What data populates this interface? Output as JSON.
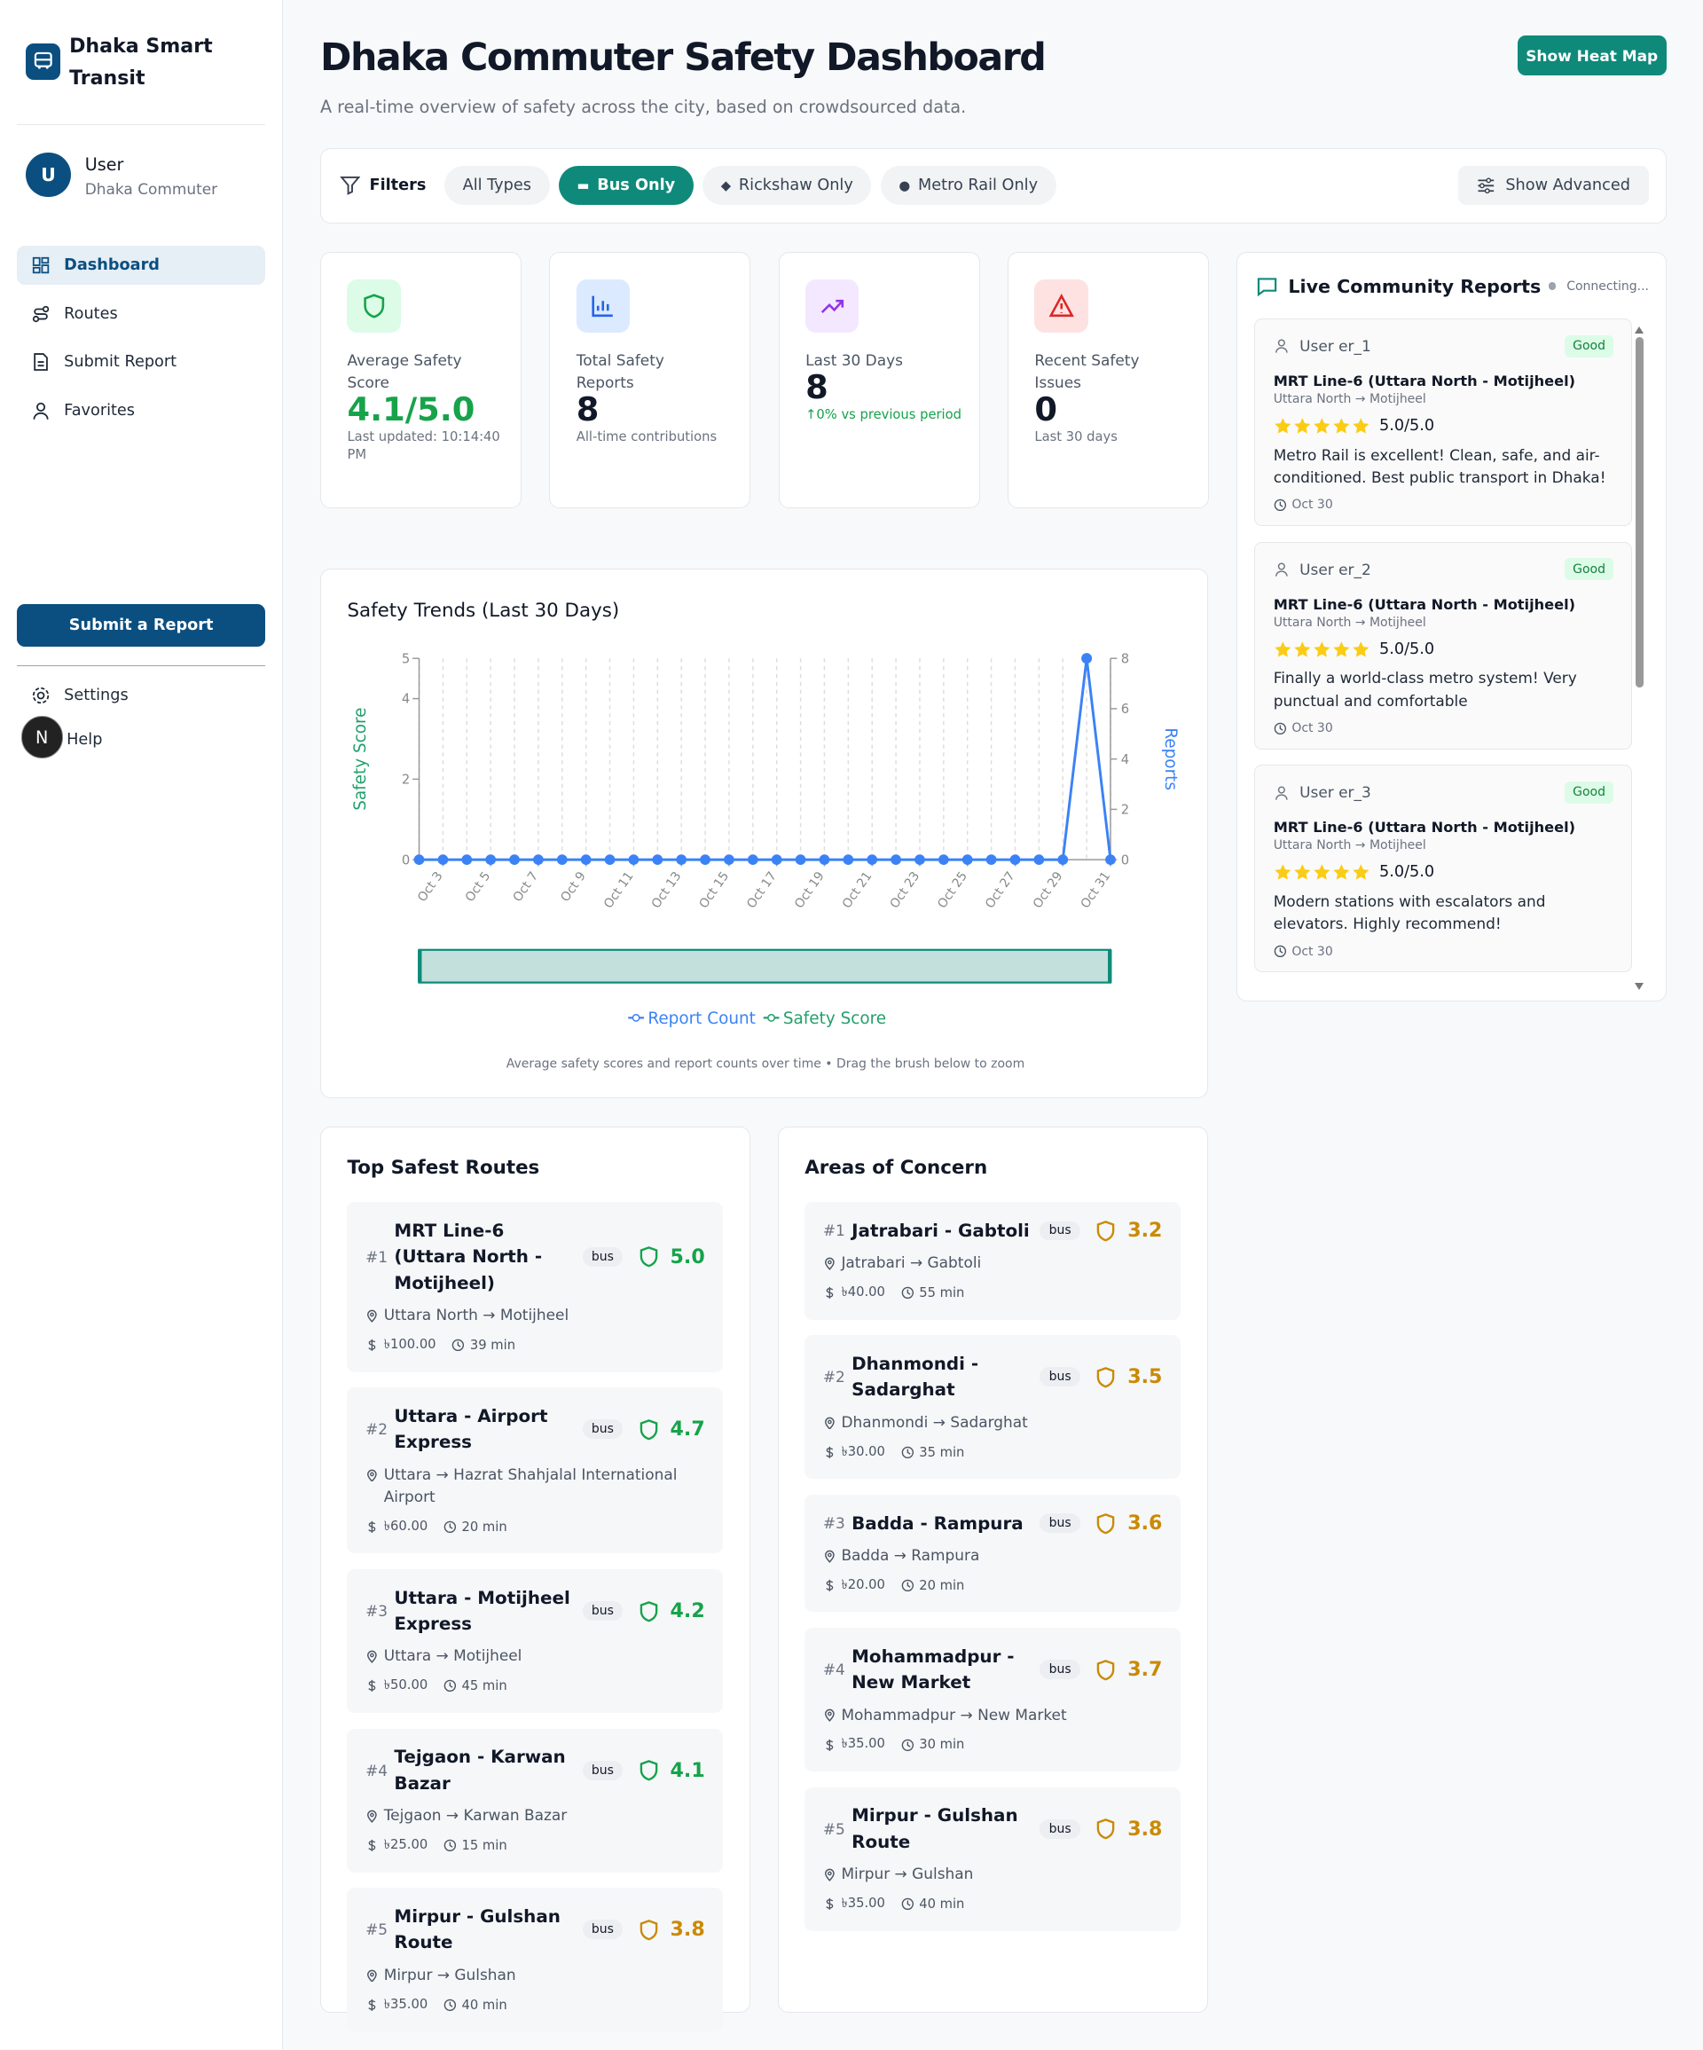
{
  "sidebar": {
    "brand": "Dhaka Smart Transit",
    "avatar": "U",
    "user_name": "User",
    "user_role": "Dhaka Commuter",
    "nav": [
      "Dashboard",
      "Routes",
      "Submit Report",
      "Favorites"
    ],
    "active_nav": 0,
    "submit_button": "Submit a Report",
    "footer_nav": [
      "Settings",
      "Help"
    ],
    "badge": "N"
  },
  "header": {
    "title": "Dhaka Commuter Safety Dashboard",
    "subtitle": "A real-time overview of safety across the city, based on crowdsourced data.",
    "heat_map_button": "Show Heat Map"
  },
  "filters": {
    "label": "Filters",
    "chips": [
      "All Types",
      "Bus Only",
      "Rickshaw Only",
      "Metro Rail Only"
    ],
    "active_chip": 1,
    "advanced": "Show Advanced"
  },
  "stats": [
    {
      "label": "Average Safety Score",
      "value": "4.1/5.0",
      "note": "Last updated: 10:14:40 PM"
    },
    {
      "label": "Total Safety Reports",
      "value": "8",
      "note": "All-time contributions"
    },
    {
      "label": "Last 30 Days",
      "value": "8",
      "note": "↑0% vs previous period"
    },
    {
      "label": "Recent Safety Issues",
      "value": "0",
      "note": "Last 30 days"
    }
  ],
  "chart_data": {
    "type": "line",
    "title": "Safety Trends (Last 30 Days)",
    "categories": [
      null,
      "Oct 3",
      null,
      "Oct 5",
      null,
      "Oct 7",
      null,
      "Oct 9",
      null,
      "Oct 11",
      null,
      "Oct 13",
      null,
      "Oct 15",
      null,
      "Oct 17",
      null,
      "Oct 19",
      null,
      "Oct 21",
      null,
      "Oct 23",
      null,
      "Oct 25",
      null,
      "Oct 27",
      null,
      "Oct 29",
      null,
      "Oct 31"
    ],
    "series": [
      {
        "name": "Report Count",
        "color": "#3b82f6",
        "axis": "y2",
        "values": [
          0,
          0,
          0,
          0,
          0,
          0,
          0,
          0,
          0,
          0,
          0,
          0,
          0,
          0,
          0,
          0,
          0,
          0,
          0,
          0,
          0,
          0,
          0,
          0,
          0,
          0,
          0,
          0,
          8,
          0
        ]
      },
      {
        "name": "Safety Score",
        "color": "#22a06b",
        "values": [
          null,
          null,
          null,
          null,
          null,
          null,
          null,
          null,
          null,
          null,
          null,
          null,
          null,
          null,
          null,
          null,
          null,
          null,
          null,
          null,
          null,
          null,
          null,
          null,
          null,
          null,
          null,
          null,
          5,
          null
        ]
      }
    ],
    "ylabel": "Safety Score",
    "y2label": "Reports",
    "ylim": [
      0,
      5
    ],
    "yticks": [
      0,
      2,
      4,
      5
    ],
    "y2lim": [
      0,
      8
    ],
    "y2ticks": [
      0,
      2,
      4,
      6,
      8
    ],
    "grid": "x",
    "caption": "Average safety scores and report counts over time • Drag the brush below to zoom"
  },
  "live": {
    "title": "Live Community Reports",
    "status": "Connecting...",
    "reports": [
      {
        "user": "User er_1",
        "badge": "Good",
        "route": "MRT Line-6 (Uttara North - Motijheel)",
        "path": "Uttara North → Motijheel",
        "rating": "5.0/5.0",
        "text": "Metro Rail is excellent! Clean, safe, and air-conditioned. Best public transport in Dhaka!",
        "date": "Oct 30"
      },
      {
        "user": "User er_2",
        "badge": "Good",
        "route": "MRT Line-6 (Uttara North - Motijheel)",
        "path": "Uttara North → Motijheel",
        "rating": "5.0/5.0",
        "text": "Finally a world-class metro system! Very punctual and comfortable",
        "date": "Oct 30"
      },
      {
        "user": "User er_3",
        "badge": "Good",
        "route": "MRT Line-6 (Uttara North - Motijheel)",
        "path": "Uttara North → Motijheel",
        "rating": "5.0/5.0",
        "text": "Modern stations with escalators and elevators. Highly recommend!",
        "date": "Oct 30"
      }
    ]
  },
  "safest": {
    "title": "Top Safest Routes",
    "routes": [
      {
        "rank": "#1",
        "name": "MRT Line-6 (Uttara North - Motijheel)",
        "type": "bus",
        "score": "5.0",
        "color": "#16a34a",
        "path": "Uttara North → Motijheel",
        "fare": "৳100.00",
        "time": "39 min"
      },
      {
        "rank": "#2",
        "name": "Uttara - Airport Express",
        "type": "bus",
        "score": "4.7",
        "color": "#16a34a",
        "path": "Uttara → Hazrat Shahjalal International Airport",
        "fare": "৳60.00",
        "time": "20 min"
      },
      {
        "rank": "#3",
        "name": "Uttara - Motijheel Express",
        "type": "bus",
        "score": "4.2",
        "color": "#16a34a",
        "path": "Uttara → Motijheel",
        "fare": "৳50.00",
        "time": "45 min"
      },
      {
        "rank": "#4",
        "name": "Tejgaon - Karwan Bazar",
        "type": "bus",
        "score": "4.1",
        "color": "#16a34a",
        "path": "Tejgaon → Karwan Bazar",
        "fare": "৳25.00",
        "time": "15 min"
      },
      {
        "rank": "#5",
        "name": "Mirpur - Gulshan Route",
        "type": "bus",
        "score": "3.8",
        "color": "#ca8a04",
        "path": "Mirpur → Gulshan",
        "fare": "৳35.00",
        "time": "40 min"
      }
    ]
  },
  "concern": {
    "title": "Areas of Concern",
    "routes": [
      {
        "rank": "#1",
        "name": "Jatrabari - Gabtoli",
        "type": "bus",
        "score": "3.2",
        "color": "#ca8a04",
        "path": "Jatrabari → Gabtoli",
        "fare": "৳40.00",
        "time": "55 min"
      },
      {
        "rank": "#2",
        "name": "Dhanmondi - Sadarghat",
        "type": "bus",
        "score": "3.5",
        "color": "#ca8a04",
        "path": "Dhanmondi → Sadarghat",
        "fare": "৳30.00",
        "time": "35 min"
      },
      {
        "rank": "#3",
        "name": "Badda - Rampura",
        "type": "bus",
        "score": "3.6",
        "color": "#ca8a04",
        "path": "Badda → Rampura",
        "fare": "৳20.00",
        "time": "20 min"
      },
      {
        "rank": "#4",
        "name": "Mohammadpur - New Market",
        "type": "bus",
        "score": "3.7",
        "color": "#ca8a04",
        "path": "Mohammadpur → New Market",
        "fare": "৳35.00",
        "time": "30 min"
      },
      {
        "rank": "#5",
        "name": "Mirpur - Gulshan Route",
        "type": "bus",
        "score": "3.8",
        "color": "#ca8a04",
        "path": "Mirpur → Gulshan",
        "fare": "৳35.00",
        "time": "40 min"
      }
    ]
  }
}
